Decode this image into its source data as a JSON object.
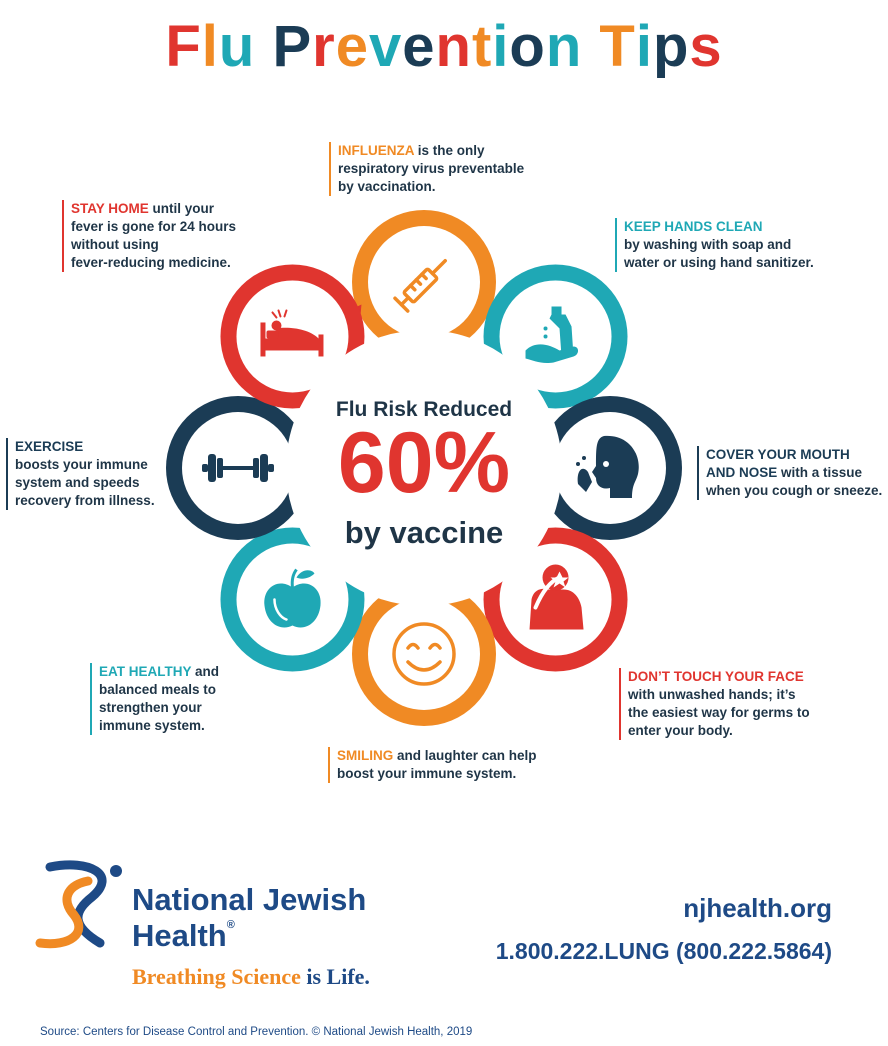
{
  "title": {
    "segments": [
      {
        "text": "F",
        "color": "#e0352f"
      },
      {
        "text": "l",
        "color": "#f08a24"
      },
      {
        "text": "u",
        "color": "#1fa8b5"
      },
      {
        "text": " ",
        "color": "#ffffff"
      },
      {
        "text": "P",
        "color": "#1b3c55"
      },
      {
        "text": "r",
        "color": "#e0352f"
      },
      {
        "text": "e",
        "color": "#f08a24"
      },
      {
        "text": "v",
        "color": "#1fa8b5"
      },
      {
        "text": "e",
        "color": "#1b3c55"
      },
      {
        "text": "n",
        "color": "#e0352f"
      },
      {
        "text": "t",
        "color": "#f08a24"
      },
      {
        "text": "i",
        "color": "#1fa8b5"
      },
      {
        "text": "o",
        "color": "#1b3c55"
      },
      {
        "text": "n",
        "color": "#1fa8b5"
      },
      {
        "text": " ",
        "color": "#ffffff"
      },
      {
        "text": "T",
        "color": "#f08a24"
      },
      {
        "text": "i",
        "color": "#1fa8b5"
      },
      {
        "text": "p",
        "color": "#1b3c55"
      },
      {
        "text": "s",
        "color": "#e0352f"
      }
    ]
  },
  "colors": {
    "red": "#e0352f",
    "orange": "#f08a24",
    "teal": "#1fa8b5",
    "navy": "#1b3c55",
    "brand_blue": "#1e4a86"
  },
  "center": {
    "line1": "Flu Risk Reduced",
    "percent": "60%",
    "line3": "by vaccine"
  },
  "tips": {
    "influenza": {
      "keyword": "INFLUENZA",
      "line1_rest": " is the only",
      "line2": "respiratory virus preventable",
      "line3": "by vaccination."
    },
    "stay_home": {
      "keyword": "STAY HOME",
      "line1_rest": "  until your",
      "line2": "fever is gone for 24 hours",
      "line3": "without using",
      "line4": "fever-reducing medicine."
    },
    "hands": {
      "keyword": "KEEP HANDS CLEAN",
      "line2": "by washing with soap and",
      "line3": "water or using hand sanitizer."
    },
    "exercise": {
      "keyword": "EXERCISE",
      "line2": "boosts your immune",
      "line3": "system and speeds",
      "line4": "recovery from illness."
    },
    "cover": {
      "keyword": "COVER YOUR MOUTH",
      "keyword2": "AND NOSE",
      "line2_rest": " with a tissue",
      "line3": "when you cough or sneeze."
    },
    "eat": {
      "keyword": "EAT HEALTHY",
      "line1_rest": " and",
      "line2": "balanced meals to",
      "line3": "strengthen your",
      "line4": "immune system."
    },
    "face": {
      "keyword": "DON’T TOUCH YOUR FACE",
      "line2": "with unwashed hands; it’s",
      "line3": "the easiest way for germs to",
      "line4": "enter your body."
    },
    "smile": {
      "keyword": "SMILING",
      "line1_rest": " and laughter can help",
      "line2": "boost your immune system."
    }
  },
  "icons": {
    "influenza": "syringe-icon",
    "hands": "hand-washing-icon",
    "cover": "sneeze-icon",
    "face": "touching-face-icon",
    "smile": "smiley-face-icon",
    "eat": "apple-icon",
    "exercise": "dumbbell-icon",
    "stay_home": "sick-in-bed-icon"
  },
  "logo": {
    "name_line1": "National Jewish",
    "name_line2": "Health",
    "registered": "®",
    "tagline_part1": "Breathing Science",
    "tagline_part2": " is Life",
    "tagline_reg": "."
  },
  "contact": {
    "website": "njhealth.org",
    "phone": "1.800.222.LUNG (800.222.5864)"
  },
  "source": "Source: Centers for Disease Control and Prevention.  © National Jewish Health, 2019"
}
